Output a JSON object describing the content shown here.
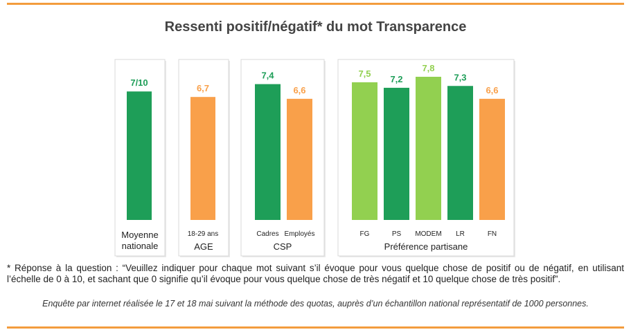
{
  "title": "Ressenti positif/négatif* du mot Transparence",
  "colors": {
    "dark_green": "#1e9e58",
    "light_green": "#92d050",
    "orange": "#f9a04a",
    "rule": "#f39c3d"
  },
  "chart_data": {
    "type": "bar",
    "ylim": [
      0,
      10
    ],
    "groups": [
      {
        "label": "Moyenne\nnationale",
        "bars": [
          {
            "category": "",
            "value": 7.0,
            "label": "7/10",
            "color": "dark_green"
          }
        ]
      },
      {
        "label": "AGE",
        "bars": [
          {
            "category": "18-29 ans",
            "value": 6.7,
            "label": "6,7",
            "color": "orange"
          }
        ]
      },
      {
        "label": "CSP",
        "bars": [
          {
            "category": "Cadres",
            "value": 7.4,
            "label": "7,4",
            "color": "dark_green"
          },
          {
            "category": "Employés",
            "value": 6.6,
            "label": "6,6",
            "color": "orange"
          }
        ]
      },
      {
        "label": "Préférence partisane",
        "bars": [
          {
            "category": "FG",
            "value": 7.5,
            "label": "7,5",
            "color": "light_green"
          },
          {
            "category": "PS",
            "value": 7.2,
            "label": "7,2",
            "color": "dark_green"
          },
          {
            "category": "MODEM",
            "value": 7.8,
            "label": "7,8",
            "color": "light_green"
          },
          {
            "category": "LR",
            "value": 7.3,
            "label": "7,3",
            "color": "dark_green"
          },
          {
            "category": "FN",
            "value": 6.6,
            "label": "6,6",
            "color": "orange"
          }
        ]
      }
    ]
  },
  "footnote": "* Réponse à la question : “Veuillez indiquer pour chaque mot suivant s’il évoque pour vous quelque chose de positif ou de négatif, en utilisant l’échelle de 0 à 10, et sachant que 0 signifie qu’il évoque pour vous quelque chose de très négatif et 10 quelque chose de très positif”.",
  "survey_note": "Enquête par internet réalisée le 17 et 18 mai suivant la méthode des quotas, auprès d’un échantillon national représentatif de 1000  personnes."
}
